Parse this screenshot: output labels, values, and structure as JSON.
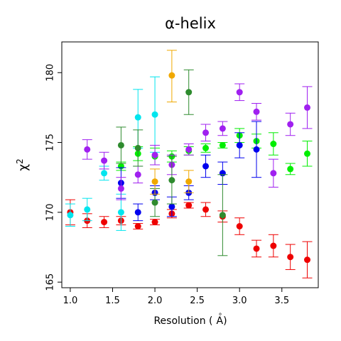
{
  "chart_data": {
    "type": "scatter",
    "title": "α-helix",
    "xlabel": "Resolution (Å)",
    "xlabel_base": "Resolution (",
    "xlabel_ring": "°",
    "xlabel_unit": "A",
    "xlabel_close": ")",
    "ylabel": "χ2",
    "ylabel_base": "χ",
    "ylabel_sup": "2",
    "xlim": [
      0.9,
      3.93
    ],
    "ylim": [
      164.6,
      182.2
    ],
    "xticks": [
      1.0,
      1.5,
      2.0,
      2.5,
      3.0,
      3.5
    ],
    "xtick_labels": [
      "1.0",
      "1.5",
      "2.0",
      "2.5",
      "3.0",
      "3.5"
    ],
    "yticks": [
      165,
      170,
      175,
      180
    ],
    "ytick_labels": [
      "165",
      "170",
      "175",
      "180"
    ],
    "grid": false,
    "error_bars": true,
    "series": [
      {
        "color": "#ee0000",
        "points": [
          {
            "x": 1.0,
            "y": 170.0,
            "lo": 169.1,
            "hi": 170.9
          },
          {
            "x": 1.2,
            "y": 169.4,
            "lo": 168.9,
            "hi": 169.9
          },
          {
            "x": 1.4,
            "y": 169.3,
            "lo": 168.9,
            "hi": 169.7
          },
          {
            "x": 1.6,
            "y": 169.4,
            "lo": 169.1,
            "hi": 169.7
          },
          {
            "x": 1.8,
            "y": 169.0,
            "lo": 168.8,
            "hi": 169.2
          },
          {
            "x": 2.0,
            "y": 169.3,
            "lo": 169.1,
            "hi": 169.5
          },
          {
            "x": 2.2,
            "y": 169.9,
            "lo": 169.6,
            "hi": 170.2
          },
          {
            "x": 2.4,
            "y": 170.5,
            "lo": 170.3,
            "hi": 170.7
          },
          {
            "x": 2.6,
            "y": 170.2,
            "lo": 169.7,
            "hi": 170.7
          },
          {
            "x": 2.8,
            "y": 169.7,
            "lo": 169.3,
            "hi": 170.1
          },
          {
            "x": 3.0,
            "y": 169.0,
            "lo": 168.4,
            "hi": 169.6
          },
          {
            "x": 3.2,
            "y": 167.4,
            "lo": 166.8,
            "hi": 168.0
          },
          {
            "x": 3.4,
            "y": 167.6,
            "lo": 166.8,
            "hi": 168.4
          },
          {
            "x": 3.6,
            "y": 166.8,
            "lo": 165.9,
            "hi": 167.7
          },
          {
            "x": 3.8,
            "y": 166.6,
            "lo": 165.3,
            "hi": 167.9
          }
        ]
      },
      {
        "color": "#00ee00",
        "points": [
          {
            "x": 1.6,
            "y": 173.3,
            "lo": 173.0,
            "hi": 173.6
          },
          {
            "x": 1.8,
            "y": 174.2,
            "lo": 173.7,
            "hi": 174.7
          },
          {
            "x": 2.0,
            "y": 174.0,
            "lo": 173.4,
            "hi": 174.6
          },
          {
            "x": 2.2,
            "y": 174.0,
            "lo": 173.6,
            "hi": 174.4
          },
          {
            "x": 2.4,
            "y": 174.4,
            "lo": 174.1,
            "hi": 174.7
          },
          {
            "x": 2.6,
            "y": 174.6,
            "lo": 174.3,
            "hi": 174.9
          },
          {
            "x": 2.8,
            "y": 174.8,
            "lo": 174.6,
            "hi": 175.0
          },
          {
            "x": 3.0,
            "y": 175.5,
            "lo": 175.0,
            "hi": 176.0
          },
          {
            "x": 3.2,
            "y": 175.1,
            "lo": 174.6,
            "hi": 175.6
          },
          {
            "x": 3.4,
            "y": 174.9,
            "lo": 174.1,
            "hi": 175.7
          },
          {
            "x": 3.6,
            "y": 173.1,
            "lo": 172.7,
            "hi": 173.5
          },
          {
            "x": 3.8,
            "y": 174.2,
            "lo": 173.3,
            "hi": 175.1
          }
        ]
      },
      {
        "color": "#0000ee",
        "points": [
          {
            "x": 1.6,
            "y": 172.1,
            "lo": 171.0,
            "hi": 173.2
          },
          {
            "x": 1.8,
            "y": 170.0,
            "lo": 169.4,
            "hi": 170.6
          },
          {
            "x": 2.0,
            "y": 171.4,
            "lo": 170.9,
            "hi": 171.9
          },
          {
            "x": 2.2,
            "y": 170.4,
            "lo": 169.7,
            "hi": 171.1
          },
          {
            "x": 2.4,
            "y": 171.4,
            "lo": 170.9,
            "hi": 171.9
          },
          {
            "x": 2.6,
            "y": 173.3,
            "lo": 172.5,
            "hi": 174.1
          },
          {
            "x": 2.8,
            "y": 172.8,
            "lo": 172.0,
            "hi": 173.6
          },
          {
            "x": 3.0,
            "y": 174.8,
            "lo": 173.9,
            "hi": 175.7
          },
          {
            "x": 3.2,
            "y": 174.5,
            "lo": 172.5,
            "hi": 176.5
          }
        ]
      },
      {
        "color": "#00e5ee",
        "points": [
          {
            "x": 1.0,
            "y": 169.8,
            "lo": 169.0,
            "hi": 170.6
          },
          {
            "x": 1.2,
            "y": 170.2,
            "lo": 169.4,
            "hi": 171.0
          },
          {
            "x": 1.4,
            "y": 172.8,
            "lo": 172.3,
            "hi": 173.3
          },
          {
            "x": 1.6,
            "y": 170.0,
            "lo": 168.7,
            "hi": 171.3
          },
          {
            "x": 1.8,
            "y": 176.8,
            "lo": 174.6,
            "hi": 178.8
          },
          {
            "x": 2.0,
            "y": 177.0,
            "lo": 174.3,
            "hi": 179.7
          }
        ]
      },
      {
        "color": "#a020f0",
        "points": [
          {
            "x": 1.2,
            "y": 174.5,
            "lo": 173.8,
            "hi": 175.2
          },
          {
            "x": 1.4,
            "y": 173.7,
            "lo": 173.1,
            "hi": 174.3
          },
          {
            "x": 1.6,
            "y": 171.7,
            "lo": 170.9,
            "hi": 172.5
          },
          {
            "x": 1.8,
            "y": 172.7,
            "lo": 172.1,
            "hi": 173.3
          },
          {
            "x": 2.0,
            "y": 174.1,
            "lo": 173.4,
            "hi": 174.8
          },
          {
            "x": 2.2,
            "y": 173.4,
            "lo": 172.7,
            "hi": 174.1
          },
          {
            "x": 2.4,
            "y": 174.5,
            "lo": 174.1,
            "hi": 174.9
          },
          {
            "x": 2.6,
            "y": 175.7,
            "lo": 175.1,
            "hi": 176.3
          },
          {
            "x": 2.8,
            "y": 176.0,
            "lo": 175.5,
            "hi": 176.5
          },
          {
            "x": 3.0,
            "y": 178.6,
            "lo": 178.0,
            "hi": 179.2
          },
          {
            "x": 3.2,
            "y": 177.2,
            "lo": 176.6,
            "hi": 177.8
          },
          {
            "x": 3.4,
            "y": 172.8,
            "lo": 171.8,
            "hi": 173.8
          },
          {
            "x": 3.6,
            "y": 176.3,
            "lo": 175.5,
            "hi": 177.1
          },
          {
            "x": 3.8,
            "y": 177.5,
            "lo": 176.0,
            "hi": 179.0
          }
        ]
      },
      {
        "color": "#2e8b2e",
        "points": [
          {
            "x": 1.6,
            "y": 174.8,
            "lo": 173.5,
            "hi": 176.1
          },
          {
            "x": 1.8,
            "y": 174.6,
            "lo": 173.3,
            "hi": 175.9
          },
          {
            "x": 2.0,
            "y": 170.7,
            "lo": 169.7,
            "hi": 171.7
          },
          {
            "x": 2.2,
            "y": 172.3,
            "lo": 170.6,
            "hi": 174.0
          },
          {
            "x": 2.4,
            "y": 178.6,
            "lo": 177.0,
            "hi": 180.2
          },
          {
            "x": 2.8,
            "y": 169.8,
            "lo": 166.9,
            "hi": 172.7
          }
        ]
      },
      {
        "color": "#f0a800",
        "points": [
          {
            "x": 2.0,
            "y": 172.2,
            "lo": 171.3,
            "hi": 173.1
          },
          {
            "x": 2.2,
            "y": 179.8,
            "lo": 177.9,
            "hi": 181.6
          },
          {
            "x": 2.4,
            "y": 172.2,
            "lo": 171.4,
            "hi": 173.0
          }
        ]
      }
    ]
  }
}
